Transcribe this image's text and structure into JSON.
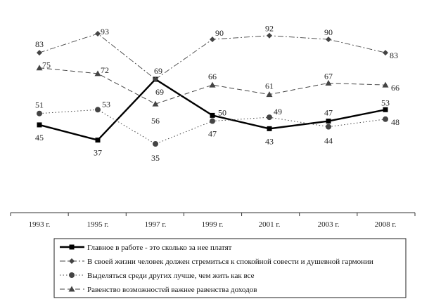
{
  "chart_data": {
    "type": "line",
    "categories": [
      "1993 г.",
      "1995 г.",
      "1997 г.",
      "1999 г.",
      "2001 г.",
      "2003 г.",
      "2008 г."
    ],
    "ylim": [
      30,
      95
    ],
    "grid": false,
    "legend_position": "bottom",
    "series": [
      {
        "name": "Главное в работе - это сколько за нее платят",
        "values": [
          45,
          37,
          69,
          50,
          43,
          47,
          53
        ],
        "style": "solid-thick",
        "marker": "square",
        "color": "#000000"
      },
      {
        "name": "В своей жизни человек должен стремиться к спокойной совести и душевной гармонии",
        "values": [
          83,
          93,
          69,
          90,
          92,
          90,
          83
        ],
        "style": "dash-dot",
        "marker": "diamond",
        "color": "#444444"
      },
      {
        "name": "Выделяться среди других лучше, чем жить как все",
        "values": [
          51,
          53,
          35,
          47,
          49,
          44,
          48
        ],
        "style": "dotted",
        "marker": "circle",
        "color": "#444444"
      },
      {
        "name": "Равенство возможностей важнее равенства доходов",
        "values": [
          75,
          72,
          56,
          66,
          61,
          67,
          66
        ],
        "style": "dashed",
        "marker": "triangle",
        "color": "#444444"
      }
    ]
  }
}
